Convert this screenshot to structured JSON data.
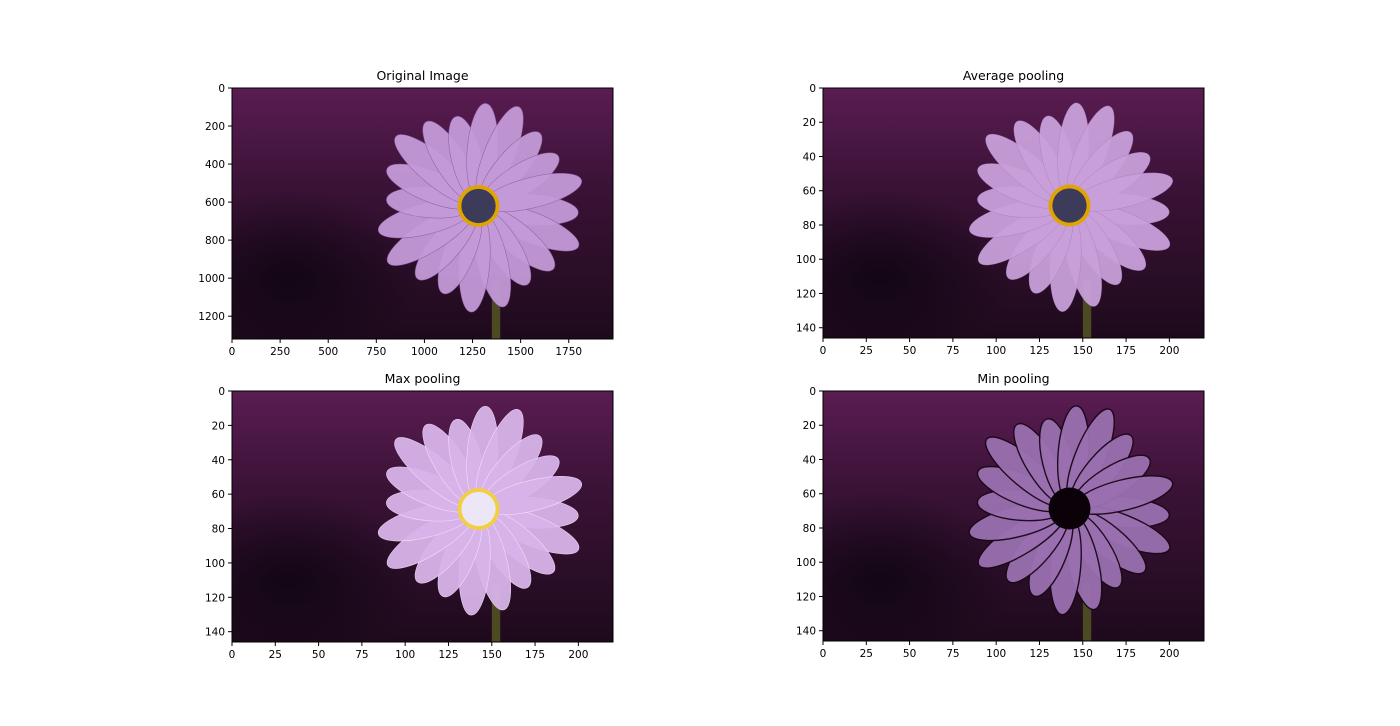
{
  "chart_data": [
    {
      "type": "image",
      "title": "Original Image",
      "image_size": [
        1980,
        1320
      ],
      "xlim": [
        0,
        1980
      ],
      "ylim": [
        1320,
        0
      ],
      "xticks": [
        0,
        250,
        500,
        750,
        1000,
        1250,
        1500,
        1750
      ],
      "yticks": [
        0,
        200,
        400,
        600,
        800,
        1000,
        1200
      ],
      "variant": "original"
    },
    {
      "type": "image",
      "title": "Average pooling",
      "image_size": [
        220,
        146
      ],
      "xlim": [
        0,
        220
      ],
      "ylim": [
        146,
        0
      ],
      "xticks": [
        0,
        25,
        50,
        75,
        100,
        125,
        150,
        175,
        200
      ],
      "yticks": [
        0,
        20,
        40,
        60,
        80,
        100,
        120,
        140
      ],
      "variant": "average"
    },
    {
      "type": "image",
      "title": "Max pooling",
      "image_size": [
        220,
        146
      ],
      "xlim": [
        0,
        220
      ],
      "ylim": [
        146,
        0
      ],
      "xticks": [
        0,
        25,
        50,
        75,
        100,
        125,
        150,
        175,
        200
      ],
      "yticks": [
        0,
        20,
        40,
        60,
        80,
        100,
        120,
        140
      ],
      "variant": "max"
    },
    {
      "type": "image",
      "title": "Min pooling",
      "image_size": [
        220,
        146
      ],
      "xlim": [
        0,
        220
      ],
      "ylim": [
        146,
        0
      ],
      "xticks": [
        0,
        25,
        50,
        75,
        100,
        125,
        150,
        175,
        200
      ],
      "yticks": [
        0,
        20,
        40,
        60,
        80,
        100,
        120,
        140
      ],
      "variant": "min"
    }
  ],
  "colors": {
    "background": "#2a0c28",
    "petal": "#c49ad8",
    "center": "#3c3c5a",
    "ring": "#e0a400",
    "stem": "#4b4a22"
  }
}
